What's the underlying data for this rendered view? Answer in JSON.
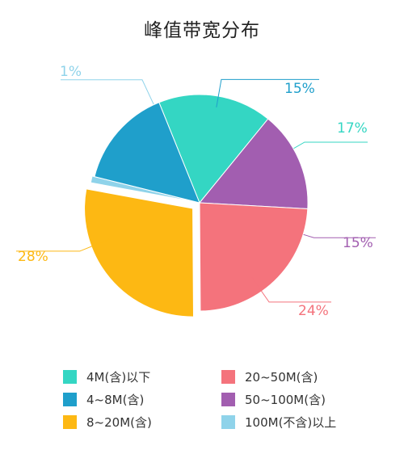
{
  "chart_data": {
    "type": "pie",
    "title": "峰值带宽分布",
    "slices": [
      {
        "name": "4M(含)以下",
        "value": 17,
        "label": "17%",
        "color": "#34d6c3"
      },
      {
        "name": "50~100M(含)",
        "value": 15,
        "label": "15%",
        "color": "#a25eb0"
      },
      {
        "name": "20~50M(含)",
        "value": 24,
        "label": "24%",
        "color": "#f4737c"
      },
      {
        "name": "8~20M(含)",
        "value": 28,
        "label": "28%",
        "color": "#fdb813"
      },
      {
        "name": "100M(不含)以上",
        "value": 1,
        "label": "1%",
        "color": "#8fd3ea"
      },
      {
        "name": "4~8M(含)",
        "value": 15,
        "label": "15%",
        "color": "#1f9fcb"
      }
    ],
    "legend": [
      {
        "label": "4M(含)以下",
        "color": "#34d6c3"
      },
      {
        "label": "20~50M(含)",
        "color": "#f4737c"
      },
      {
        "label": "4~8M(含)",
        "color": "#1f9fcb"
      },
      {
        "label": "50~100M(含)",
        "color": "#a25eb0"
      },
      {
        "label": "8~20M(含)",
        "color": "#fdb813"
      },
      {
        "label": "100M(不含)以上",
        "color": "#8fd3ea"
      }
    ],
    "legend_position": "bottom"
  }
}
